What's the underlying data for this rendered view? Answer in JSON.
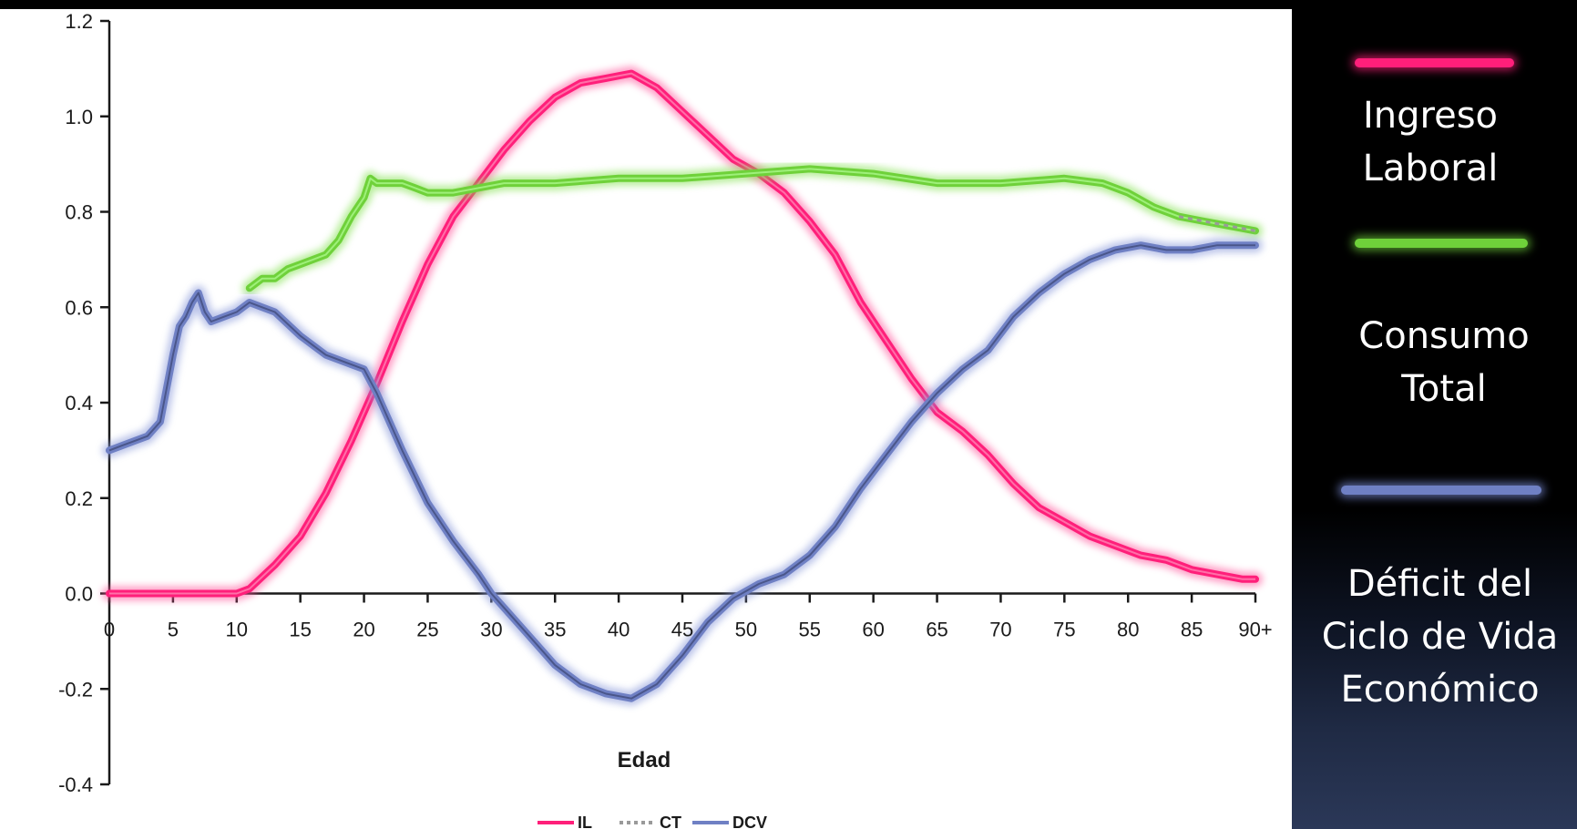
{
  "colors": {
    "il": "#ff1f7a",
    "ct": "#6fd13a",
    "dcv": "#6f80c4",
    "axis": "#1a1a1a",
    "panel": "#ffffff"
  },
  "side_legend": [
    {
      "label": "Ingreso\nLaboral",
      "color": "#ff1f7a"
    },
    {
      "label": "Consumo\nTotal",
      "color": "#6fd13a"
    },
    {
      "label": "Déficit del\nCiclo de Vida\nEconómico",
      "color": "#6f80c4"
    }
  ],
  "chart_data": {
    "type": "line",
    "xlabel": "Edad",
    "ylim": [
      -0.4,
      1.2
    ],
    "xlim": [
      0,
      90
    ],
    "yticks": [
      "1.2",
      "1.0",
      "0.8",
      "0.6",
      "0.4",
      "0.2",
      "0.0",
      "-0.2",
      "-0.4"
    ],
    "ytick_values": [
      1.2,
      1.0,
      0.8,
      0.6,
      0.4,
      0.2,
      0.0,
      -0.2,
      -0.4
    ],
    "xticks": [
      "0",
      "5",
      "10",
      "15",
      "20",
      "25",
      "30",
      "35",
      "40",
      "45",
      "50",
      "55",
      "60",
      "65",
      "70",
      "75",
      "80",
      "85",
      "90+"
    ],
    "xtick_values": [
      0,
      5,
      10,
      15,
      20,
      25,
      30,
      35,
      40,
      45,
      50,
      55,
      60,
      65,
      70,
      75,
      80,
      85,
      90
    ],
    "legend": [
      {
        "key": "IL",
        "label": "IL"
      },
      {
        "key": "CT",
        "label": "CT"
      },
      {
        "key": "DCV",
        "label": "DCV"
      }
    ],
    "series": [
      {
        "name": "IL",
        "points": [
          [
            0,
            0
          ],
          [
            5,
            0
          ],
          [
            10,
            0
          ],
          [
            11,
            0.01
          ],
          [
            13,
            0.06
          ],
          [
            15,
            0.12
          ],
          [
            17,
            0.21
          ],
          [
            19,
            0.32
          ],
          [
            21,
            0.44
          ],
          [
            23,
            0.57
          ],
          [
            25,
            0.69
          ],
          [
            27,
            0.79
          ],
          [
            29,
            0.86
          ],
          [
            31,
            0.93
          ],
          [
            33,
            0.99
          ],
          [
            35,
            1.04
          ],
          [
            37,
            1.07
          ],
          [
            39,
            1.08
          ],
          [
            41,
            1.09
          ],
          [
            43,
            1.06
          ],
          [
            45,
            1.01
          ],
          [
            47,
            0.96
          ],
          [
            49,
            0.91
          ],
          [
            51,
            0.88
          ],
          [
            53,
            0.84
          ],
          [
            55,
            0.78
          ],
          [
            57,
            0.71
          ],
          [
            59,
            0.61
          ],
          [
            61,
            0.53
          ],
          [
            63,
            0.45
          ],
          [
            65,
            0.38
          ],
          [
            67,
            0.34
          ],
          [
            69,
            0.29
          ],
          [
            71,
            0.23
          ],
          [
            73,
            0.18
          ],
          [
            75,
            0.15
          ],
          [
            77,
            0.12
          ],
          [
            79,
            0.1
          ],
          [
            81,
            0.08
          ],
          [
            83,
            0.07
          ],
          [
            85,
            0.05
          ],
          [
            87,
            0.04
          ],
          [
            89,
            0.03
          ],
          [
            90,
            0.03
          ]
        ]
      },
      {
        "name": "CT",
        "points": [
          [
            11,
            0.64
          ],
          [
            12,
            0.66
          ],
          [
            13,
            0.66
          ],
          [
            14,
            0.68
          ],
          [
            15,
            0.69
          ],
          [
            16,
            0.7
          ],
          [
            17,
            0.71
          ],
          [
            18,
            0.74
          ],
          [
            19,
            0.79
          ],
          [
            20,
            0.83
          ],
          [
            20.5,
            0.87
          ],
          [
            21,
            0.86
          ],
          [
            22,
            0.86
          ],
          [
            23,
            0.86
          ],
          [
            24,
            0.85
          ],
          [
            25,
            0.84
          ],
          [
            27,
            0.84
          ],
          [
            29,
            0.85
          ],
          [
            31,
            0.86
          ],
          [
            35,
            0.86
          ],
          [
            40,
            0.87
          ],
          [
            45,
            0.87
          ],
          [
            50,
            0.88
          ],
          [
            55,
            0.89
          ],
          [
            60,
            0.88
          ],
          [
            65,
            0.86
          ],
          [
            70,
            0.86
          ],
          [
            75,
            0.87
          ],
          [
            78,
            0.86
          ],
          [
            80,
            0.84
          ],
          [
            82,
            0.81
          ],
          [
            84,
            0.79
          ],
          [
            86,
            0.78
          ],
          [
            88,
            0.77
          ],
          [
            90,
            0.76
          ]
        ]
      },
      {
        "name": "DCV",
        "points": [
          [
            0,
            0.3
          ],
          [
            1,
            0.31
          ],
          [
            2,
            0.32
          ],
          [
            3,
            0.33
          ],
          [
            4,
            0.36
          ],
          [
            5,
            0.5
          ],
          [
            5.5,
            0.56
          ],
          [
            6,
            0.58
          ],
          [
            6.5,
            0.61
          ],
          [
            7,
            0.63
          ],
          [
            7.5,
            0.59
          ],
          [
            8,
            0.57
          ],
          [
            9,
            0.58
          ],
          [
            10,
            0.59
          ],
          [
            11,
            0.61
          ],
          [
            12,
            0.6
          ],
          [
            13,
            0.59
          ],
          [
            15,
            0.54
          ],
          [
            17,
            0.5
          ],
          [
            19,
            0.48
          ],
          [
            20,
            0.47
          ],
          [
            21,
            0.42
          ],
          [
            23,
            0.3
          ],
          [
            25,
            0.19
          ],
          [
            27,
            0.11
          ],
          [
            29,
            0.04
          ],
          [
            30,
            0
          ],
          [
            31,
            -0.03
          ],
          [
            33,
            -0.09
          ],
          [
            35,
            -0.15
          ],
          [
            37,
            -0.19
          ],
          [
            39,
            -0.21
          ],
          [
            41,
            -0.22
          ],
          [
            43,
            -0.19
          ],
          [
            45,
            -0.13
          ],
          [
            47,
            -0.06
          ],
          [
            49,
            -0.01
          ],
          [
            51,
            0.02
          ],
          [
            53,
            0.04
          ],
          [
            55,
            0.08
          ],
          [
            57,
            0.14
          ],
          [
            59,
            0.22
          ],
          [
            61,
            0.29
          ],
          [
            63,
            0.36
          ],
          [
            65,
            0.42
          ],
          [
            67,
            0.47
          ],
          [
            69,
            0.51
          ],
          [
            71,
            0.58
          ],
          [
            73,
            0.63
          ],
          [
            75,
            0.67
          ],
          [
            77,
            0.7
          ],
          [
            79,
            0.72
          ],
          [
            81,
            0.73
          ],
          [
            83,
            0.72
          ],
          [
            85,
            0.72
          ],
          [
            87,
            0.73
          ],
          [
            90,
            0.73
          ]
        ]
      }
    ]
  }
}
